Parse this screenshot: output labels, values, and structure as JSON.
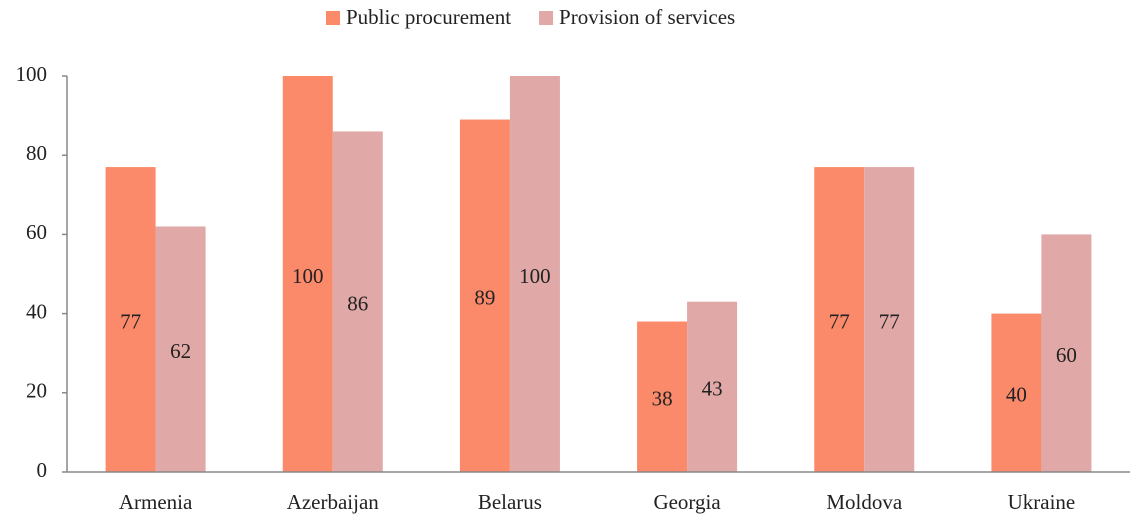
{
  "chart_data": {
    "type": "bar",
    "categories": [
      "Armenia",
      "Azerbaijan",
      "Belarus",
      "Georgia",
      "Moldova",
      "Ukraine"
    ],
    "series": [
      {
        "name": "Public procurement",
        "color": "#fb8a6b",
        "values": [
          77,
          100,
          89,
          38,
          77,
          40
        ]
      },
      {
        "name": "Provision of services",
        "color": "#e0a8a7",
        "values": [
          62,
          86,
          100,
          43,
          77,
          60
        ]
      }
    ],
    "ylim": [
      0,
      100
    ],
    "yticks": [
      0,
      20,
      40,
      60,
      80,
      100
    ],
    "grid": false,
    "legend": "top"
  }
}
